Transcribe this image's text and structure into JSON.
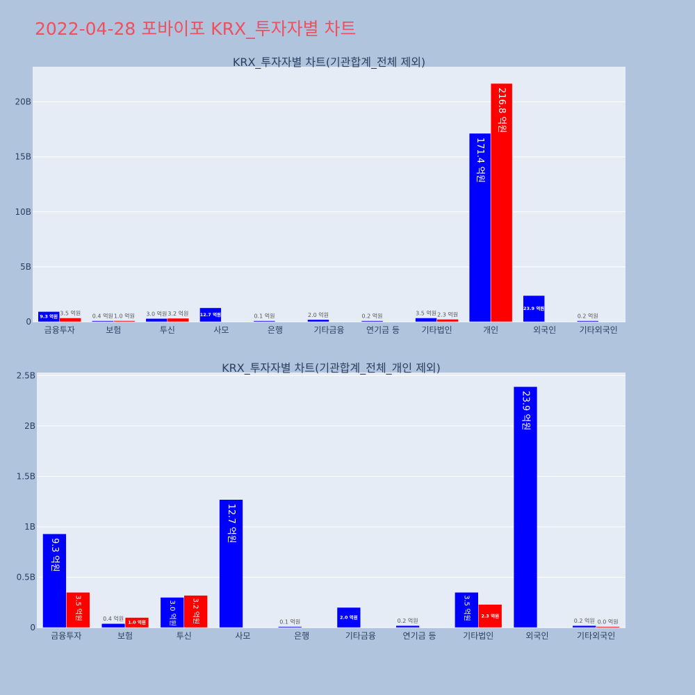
{
  "page_title": "2022-04-28 포바이포 KRX_투자자별 차트",
  "colors": {
    "buy": "#0000ff",
    "sell": "#ff0000",
    "plot_bg": "#e5ecf6",
    "page_bg": "#b0c4de",
    "title": "#ef4f5f"
  },
  "chart_data": [
    {
      "type": "bar",
      "title": "KRX_투자자별 차트(기관합계_전체 제외)",
      "categories": [
        "금융투자",
        "보험",
        "투신",
        "사모",
        "은행",
        "기타금융",
        "연기금 등",
        "기타법인",
        "개인",
        "외국인",
        "기타외국인"
      ],
      "series": [
        {
          "color": "#0000ff",
          "values": [
            0.93,
            0.04,
            0.3,
            1.27,
            0.01,
            0.2,
            0.02,
            0.35,
            17.14,
            2.39,
            0.02
          ],
          "labels": [
            "9.3 억원",
            "0.4 억원",
            "3.0 억원",
            "12.7 억원",
            "0.1 억원",
            "2.0 억원",
            "0.2 억원",
            "3.5 억원",
            "171.4 억원",
            "23.9 억원",
            "0.2 억원"
          ]
        },
        {
          "color": "#ff0000",
          "values": [
            0.35,
            0.1,
            0.32,
            null,
            null,
            null,
            null,
            0.23,
            21.68,
            null,
            null
          ],
          "labels": [
            "3.5 억원",
            "1.0 억원",
            "3.2 억원",
            "",
            "",
            "",
            "",
            "2.3 억원",
            "216.8 억원",
            "",
            ""
          ]
        }
      ],
      "ylim": [
        0,
        23.2
      ],
      "yticks": [
        0,
        5,
        10,
        15,
        20
      ],
      "ytick_labels": [
        "0",
        "5B",
        "10B",
        "15B",
        "20B"
      ],
      "grid": true
    },
    {
      "type": "bar",
      "title": "KRX_투자자별 차트(기관합계_전체_개인 제외)",
      "categories": [
        "금융투자",
        "보험",
        "투신",
        "사모",
        "은행",
        "기타금융",
        "연기금 등",
        "기타법인",
        "외국인",
        "기타외국인"
      ],
      "series": [
        {
          "color": "#0000ff",
          "values": [
            0.93,
            0.04,
            0.3,
            1.27,
            0.01,
            0.2,
            0.02,
            0.35,
            2.39,
            0.02
          ],
          "labels": [
            "9.3 억원",
            "0.4 억원",
            "3.0 억원",
            "12.7 억원",
            "0.1 억원",
            "2.0 억원",
            "0.2 억원",
            "3.5 억원",
            "23.9 억원",
            "0.2 억원"
          ]
        },
        {
          "color": "#ff0000",
          "values": [
            0.35,
            0.1,
            0.32,
            null,
            null,
            null,
            null,
            0.23,
            null,
            0.0
          ],
          "labels": [
            "3.5 억원",
            "1.0 억원",
            "3.2 억원",
            "",
            "",
            "",
            "",
            "2.3 억원",
            "",
            "0.0 억원"
          ]
        }
      ],
      "ylim": [
        0,
        2.53
      ],
      "yticks": [
        0,
        0.5,
        1,
        1.5,
        2,
        2.5
      ],
      "ytick_labels": [
        "0",
        "0.5B",
        "1B",
        "1.5B",
        "2B",
        "2.5B"
      ],
      "grid": true
    }
  ]
}
